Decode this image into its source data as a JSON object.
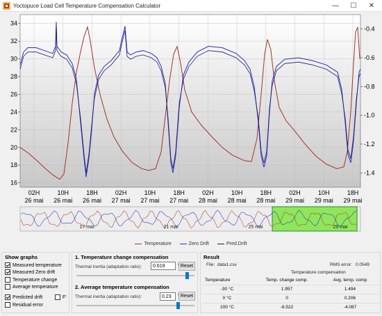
{
  "window": {
    "title": "Yoctopuce Load Cell Temperature Compensation Calculator",
    "minimize_glyph": "—",
    "maximize_glyph": "☐",
    "close_glyph": "✕"
  },
  "chart_data": {
    "type": "line",
    "left_axis": {
      "ticks": [
        "34",
        "32",
        "30",
        "28",
        "26",
        "24",
        "22",
        "20",
        "18",
        "16"
      ],
      "ylim": [
        15.5,
        35
      ]
    },
    "right_axis": {
      "ticks": [
        "-0.4",
        "-0.6",
        "-0.8",
        "-1.0",
        "-1.2",
        "-1.4"
      ],
      "ylim": [
        -1.5,
        -0.3
      ]
    },
    "x_ticks": [
      {
        "time": "02H",
        "date": "26 mai"
      },
      {
        "time": "10H",
        "date": "26 mai"
      },
      {
        "time": "18H",
        "date": "26 mai"
      },
      {
        "time": "02H",
        "date": "27 mai"
      },
      {
        "time": "10H",
        "date": "27 mai"
      },
      {
        "time": "18H",
        "date": "27 mai"
      },
      {
        "time": "02H",
        "date": "28 mai"
      },
      {
        "time": "10H",
        "date": "28 mai"
      },
      {
        "time": "18H",
        "date": "28 mai"
      },
      {
        "time": "02H",
        "date": "29 mai"
      },
      {
        "time": "10H",
        "date": "29 mai"
      },
      {
        "time": "18H",
        "date": "29 mai"
      }
    ],
    "navigator_labels": [
      "17 mai",
      "21 mai",
      "25 mai",
      "29 mai"
    ],
    "series": [
      {
        "name": "Temperature",
        "color": "#a0342c"
      },
      {
        "name": "Zero Drift",
        "color": "#2f2fc0"
      },
      {
        "name": "Pred.Drift",
        "color": "#1c1c6e"
      }
    ]
  },
  "show_graphs": {
    "title": "Show graphs",
    "items": [
      {
        "label": "Measured temperature",
        "checked": true
      },
      {
        "label": "Measured Zero drift",
        "checked": true
      },
      {
        "label": "Temperature change",
        "checked": false
      },
      {
        "label": "Average temperature",
        "checked": false
      },
      {
        "label": "Predicted drift",
        "checked": true
      },
      {
        "label": "Residual error",
        "checked": false
      }
    ],
    "extra_checkbox_label": "F'"
  },
  "comp1": {
    "title": "1. Temperature change compensation",
    "label": "Thermal inertia (adaptation ratio):",
    "value": "0.619",
    "unit": "‰",
    "reset": "Reset",
    "slider_level": 0.94
  },
  "comp2": {
    "title": "2. Average temperature compensation",
    "label": "Thermal inertia (adaptation ratio):",
    "value": "0.23",
    "unit": "‰",
    "reset": "Reset",
    "slider_level": 0.86
  },
  "result": {
    "title": "Result",
    "file_label": "File:",
    "file_value": "data1.csv",
    "rms_label": "RMS error:",
    "rms_value": "0.0549",
    "group_header": "Temperature compensation",
    "columns": [
      "Temperature",
      "Temp. change comp.",
      "Avg. temp. comp"
    ],
    "rows": [
      [
        "-30 °C",
        "1.957",
        "1.494"
      ],
      [
        "0 °C",
        "0",
        "0.206"
      ],
      [
        "100 °C",
        "-6.522",
        "-4.087"
      ]
    ]
  }
}
